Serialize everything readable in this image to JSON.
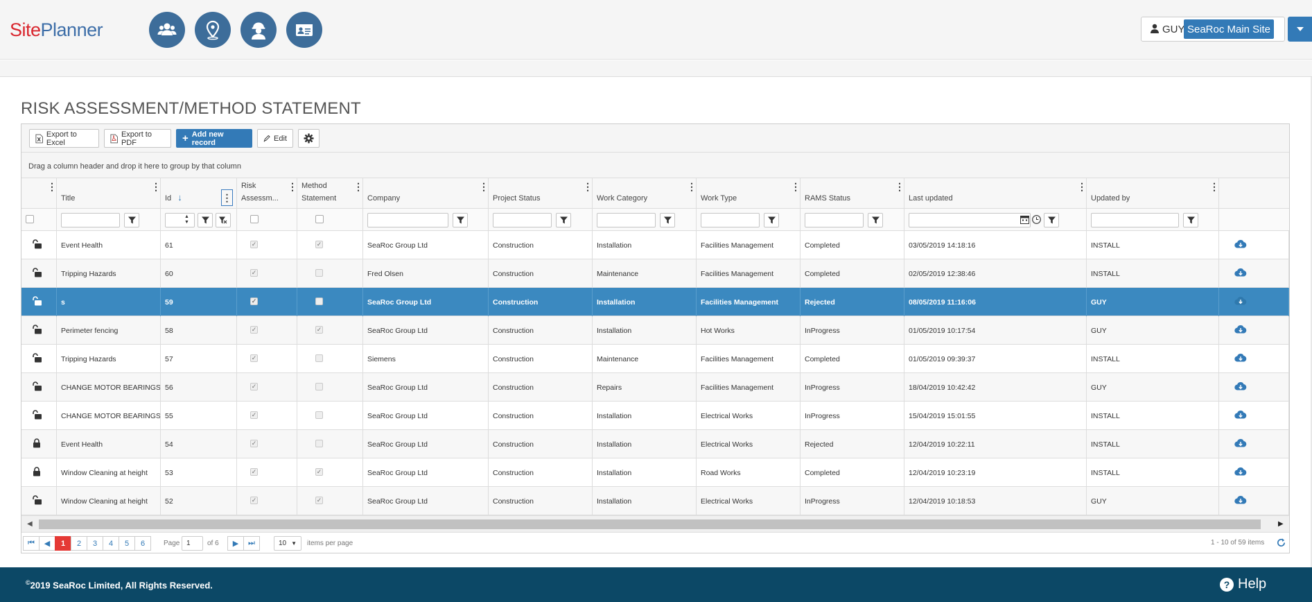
{
  "app": {
    "logo_part1": "Site",
    "logo_part2": "Planner"
  },
  "nav_icons": [
    "people-icon",
    "location-pin-icon",
    "worker-hardhat-icon",
    "id-card-icon"
  ],
  "user": {
    "name": "GUY",
    "site": "SeaRoc Main Site"
  },
  "page_title": "RISK ASSESSMENT/METHOD STATEMENT",
  "toolbar": {
    "export_excel": "Export to Excel",
    "export_pdf": "Export to PDF",
    "add_new": "Add new record",
    "edit": "Edit"
  },
  "group_hint": "Drag a column header and drop it here to group by that column",
  "columns": {
    "title": "Title",
    "id": "Id",
    "risk_line1": "Risk",
    "risk_line2": "Assessm...",
    "method_line1": "Method",
    "method_line2": "Statement",
    "company": "Company",
    "project_status": "Project Status",
    "work_category": "Work Category",
    "work_type": "Work Type",
    "rams_status": "RAMS Status",
    "last_updated": "Last updated",
    "updated_by": "Updated by"
  },
  "rows": [
    {
      "locked": false,
      "title": "Event Health",
      "id": "61",
      "risk": true,
      "method": true,
      "company": "SeaRoc Group Ltd",
      "project_status": "Construction",
      "work_category": "Installation",
      "work_type": "Facilities Management",
      "rams_status": "Completed",
      "last_updated": "03/05/2019 14:18:16",
      "updated_by": "INSTALL"
    },
    {
      "locked": false,
      "title": "Tripping Hazards",
      "id": "60",
      "risk": true,
      "method": false,
      "company": "Fred Olsen",
      "project_status": "Construction",
      "work_category": "Maintenance",
      "work_type": "Facilities Management",
      "rams_status": "Completed",
      "last_updated": "02/05/2019 12:38:46",
      "updated_by": "INSTALL"
    },
    {
      "locked": false,
      "title": "s",
      "id": "59",
      "risk": true,
      "method": false,
      "company": "SeaRoc Group Ltd",
      "project_status": "Construction",
      "work_category": "Installation",
      "work_type": "Facilities Management",
      "rams_status": "Rejected",
      "last_updated": "08/05/2019 11:16:06",
      "updated_by": "GUY",
      "selected": true
    },
    {
      "locked": false,
      "title": "Perimeter fencing",
      "id": "58",
      "risk": true,
      "method": true,
      "company": "SeaRoc Group Ltd",
      "project_status": "Construction",
      "work_category": "Installation",
      "work_type": "Hot Works",
      "rams_status": "InProgress",
      "last_updated": "01/05/2019 10:17:54",
      "updated_by": "GUY"
    },
    {
      "locked": false,
      "title": "Tripping Hazards",
      "id": "57",
      "risk": true,
      "method": false,
      "company": "Siemens",
      "project_status": "Construction",
      "work_category": "Maintenance",
      "work_type": "Facilities Management",
      "rams_status": "Completed",
      "last_updated": "01/05/2019 09:39:37",
      "updated_by": "INSTALL"
    },
    {
      "locked": false,
      "title": "CHANGE MOTOR BEARINGS",
      "id": "56",
      "risk": true,
      "method": false,
      "company": "SeaRoc Group Ltd",
      "project_status": "Construction",
      "work_category": "Repairs",
      "work_type": "Facilities Management",
      "rams_status": "InProgress",
      "last_updated": "18/04/2019 10:42:42",
      "updated_by": "GUY"
    },
    {
      "locked": false,
      "title": "CHANGE MOTOR BEARINGS",
      "id": "55",
      "risk": true,
      "method": false,
      "company": "SeaRoc Group Ltd",
      "project_status": "Construction",
      "work_category": "Installation",
      "work_type": "Electrical Works",
      "rams_status": "InProgress",
      "last_updated": "15/04/2019 15:01:55",
      "updated_by": "INSTALL"
    },
    {
      "locked": true,
      "title": "Event Health",
      "id": "54",
      "risk": true,
      "method": false,
      "company": "SeaRoc Group Ltd",
      "project_status": "Construction",
      "work_category": "Installation",
      "work_type": "Electrical Works",
      "rams_status": "Rejected",
      "last_updated": "12/04/2019 10:22:11",
      "updated_by": "INSTALL"
    },
    {
      "locked": true,
      "title": "Window Cleaning at height",
      "id": "53",
      "risk": true,
      "method": true,
      "company": "SeaRoc Group Ltd",
      "project_status": "Construction",
      "work_category": "Installation",
      "work_type": "Road Works",
      "rams_status": "Completed",
      "last_updated": "12/04/2019 10:23:19",
      "updated_by": "INSTALL"
    },
    {
      "locked": false,
      "title": "Window Cleaning at height",
      "id": "52",
      "risk": true,
      "method": true,
      "company": "SeaRoc Group Ltd",
      "project_status": "Construction",
      "work_category": "Installation",
      "work_type": "Electrical Works",
      "rams_status": "InProgress",
      "last_updated": "12/04/2019 10:18:53",
      "updated_by": "GUY"
    }
  ],
  "pager": {
    "pages": [
      "1",
      "2",
      "3",
      "4",
      "5",
      "6"
    ],
    "current_page": "1",
    "page_label": "Page",
    "of_label": "of 6",
    "page_size": "10",
    "items_per_page": "items per page",
    "summary": "1 - 10 of 59 items"
  },
  "footer": {
    "copyright": "2019 SeaRoc Limited, All Rights Reserved.",
    "copyright_symbol": "©",
    "help": "Help"
  },
  "colors": {
    "primary": "#337ab7",
    "nav_icon_bg": "#3d6d9a",
    "selected_row": "#3b89c0",
    "footer": "#0c4866",
    "logo_red": "#d9262e",
    "logo_blue": "#3d6ea8",
    "pager_active": "#e53935"
  }
}
